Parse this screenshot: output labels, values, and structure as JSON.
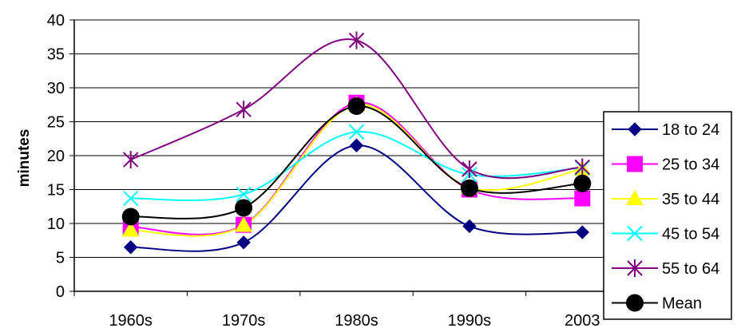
{
  "chart_data": {
    "type": "line",
    "ylabel": "minutes",
    "xlabel": "",
    "categories": [
      "1960s",
      "1970s",
      "1980s",
      "1990s",
      "2003"
    ],
    "ylim": [
      0,
      40
    ],
    "yticks": [
      "0",
      "5",
      "10",
      "15",
      "20",
      "25",
      "30",
      "35",
      "40"
    ],
    "grid": "horizontal",
    "legend": "right",
    "series": [
      {
        "name": "18 to 24",
        "values": [
          6.5,
          7.2,
          21.5,
          9.6,
          8.7
        ],
        "color": "#000080",
        "marker": "diamond"
      },
      {
        "name": "25 to 34",
        "values": [
          9.5,
          9.8,
          27.8,
          15.0,
          13.7
        ],
        "color": "#FF00FF",
        "marker": "square"
      },
      {
        "name": "35 to 44",
        "values": [
          9.0,
          9.7,
          27.5,
          15.3,
          18.0
        ],
        "color": "#FFFF00",
        "marker": "triangle"
      },
      {
        "name": "45 to 54",
        "values": [
          13.7,
          14.3,
          23.5,
          17.2,
          18.2
        ],
        "color": "#00FFFF",
        "marker": "x"
      },
      {
        "name": "55 to 64",
        "values": [
          19.4,
          26.8,
          37.0,
          18.0,
          18.3
        ],
        "color": "#800080",
        "marker": "star"
      },
      {
        "name": "Mean",
        "values": [
          11.0,
          12.3,
          27.3,
          15.2,
          15.9
        ],
        "color": "#000000",
        "marker": "circle"
      }
    ]
  }
}
